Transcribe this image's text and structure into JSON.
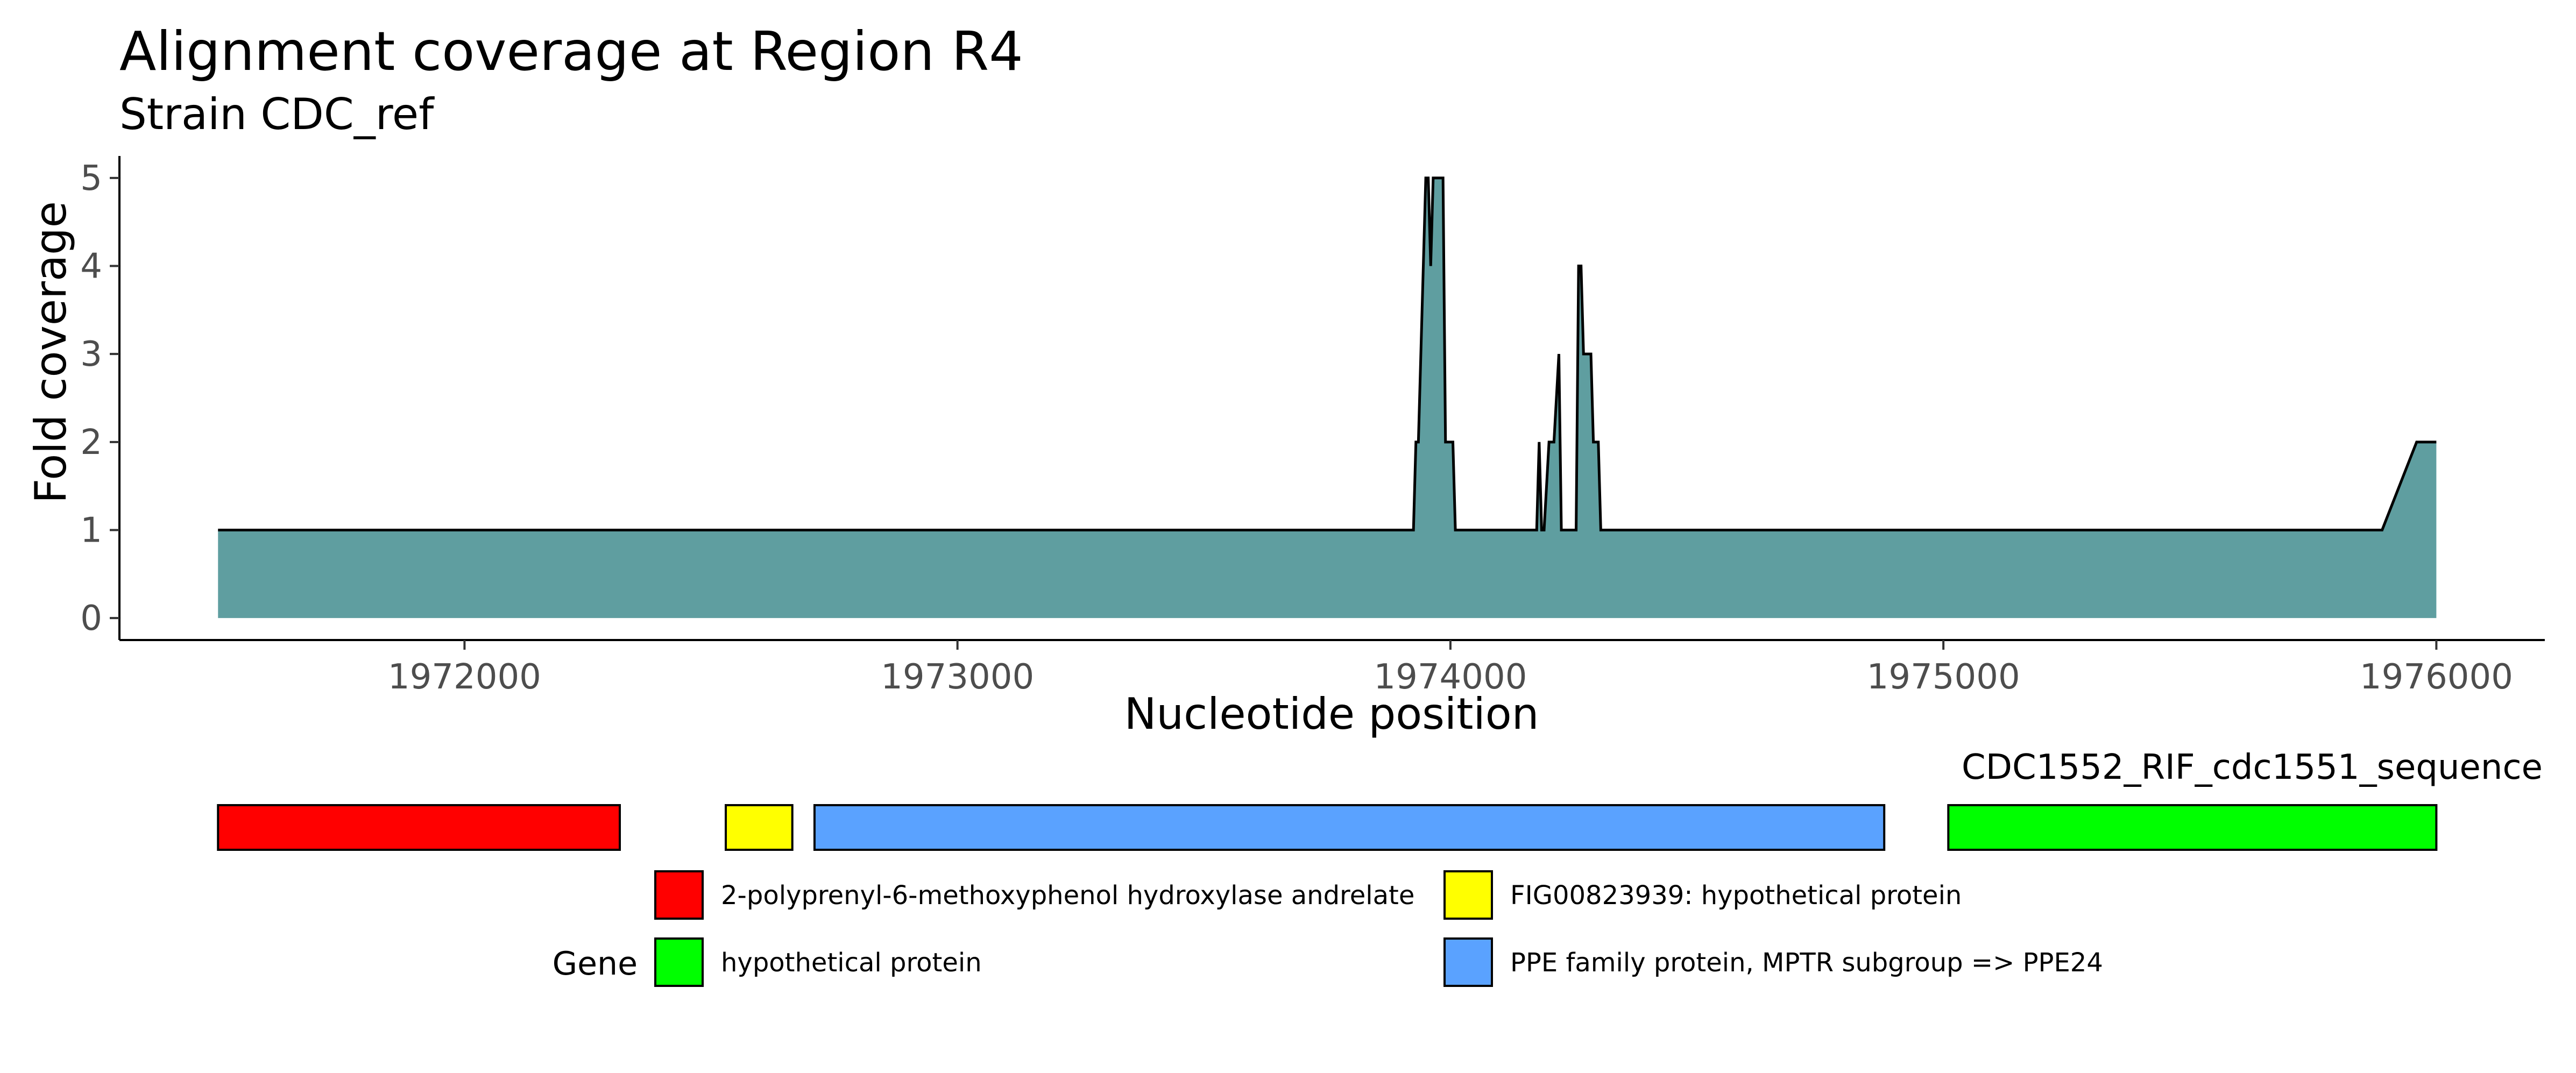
{
  "chart_data": {
    "type": "area",
    "title": "Alignment coverage at Region R4",
    "subtitle": "Strain CDC_ref",
    "xlabel": "Nucleotide position",
    "ylabel": "Fold coverage",
    "xlim": [
      1971300,
      1976220
    ],
    "ylim": [
      -0.25,
      5.25
    ],
    "x_ticks": [
      1972000,
      1973000,
      1974000,
      1975000,
      1976000
    ],
    "x_tick_labels": [
      "1972000",
      "1973000",
      "1974000",
      "1975000",
      "1976000"
    ],
    "y_ticks": [
      0,
      1,
      2,
      3,
      4,
      5
    ],
    "y_tick_labels": [
      "0",
      "1",
      "2",
      "3",
      "4",
      "5"
    ],
    "grid": false,
    "fill_color": "#5f9ea0",
    "line_color": "#000000",
    "series": [
      {
        "x": [
          1971500,
          1973925,
          1973930,
          1973935,
          1973950,
          1973955,
          1973960,
          1973965,
          1973970,
          1973975,
          1973980,
          1973985,
          1973990,
          1974000,
          1974005,
          1974010,
          1974015,
          1974020,
          1974175,
          1974180,
          1974185,
          1974190,
          1974200,
          1974205,
          1974210,
          1974220,
          1974225,
          1974230,
          1974255,
          1974260,
          1974265,
          1974270,
          1974285,
          1974290,
          1974300,
          1974305,
          1974310,
          1975890,
          1975960,
          1976000
        ],
        "y": [
          1,
          1,
          2,
          2,
          5,
          5,
          4,
          5,
          5,
          5,
          5,
          5,
          2,
          2,
          2,
          1,
          1,
          1,
          1,
          2,
          1,
          1,
          2,
          2,
          2,
          3,
          1,
          1,
          1,
          4,
          4,
          3,
          3,
          2,
          2,
          1,
          1,
          1,
          2,
          2
        ]
      }
    ],
    "gene_track": {
      "label": "CDC1552_RIF_cdc1551_sequence",
      "genes": [
        {
          "start": 1971500,
          "end": 1972315,
          "name": "2-polyprenyl-6-methoxyphenol hydroxylase andrelate"
        },
        {
          "start": 1972530,
          "end": 1972665,
          "name": "FIG00823939: hypothetical protein"
        },
        {
          "start": 1972710,
          "end": 1974880,
          "name": "PPE family protein, MPTR subgroup => PPE24"
        },
        {
          "start": 1975010,
          "end": 1976000,
          "name": "hypothetical protein"
        }
      ]
    },
    "legend": {
      "title": "Gene",
      "placement": "bottom",
      "entries": [
        {
          "label": "2-polyprenyl-6-methoxyphenol hydroxylase andrelate",
          "color": "#ff0000"
        },
        {
          "label": "FIG00823939: hypothetical protein",
          "color": "#ffff00"
        },
        {
          "label": "hypothetical protein",
          "color": "#00ff00"
        },
        {
          "label": "PPE family protein, MPTR subgroup => PPE24",
          "color": "#5aa2ff"
        }
      ]
    }
  }
}
